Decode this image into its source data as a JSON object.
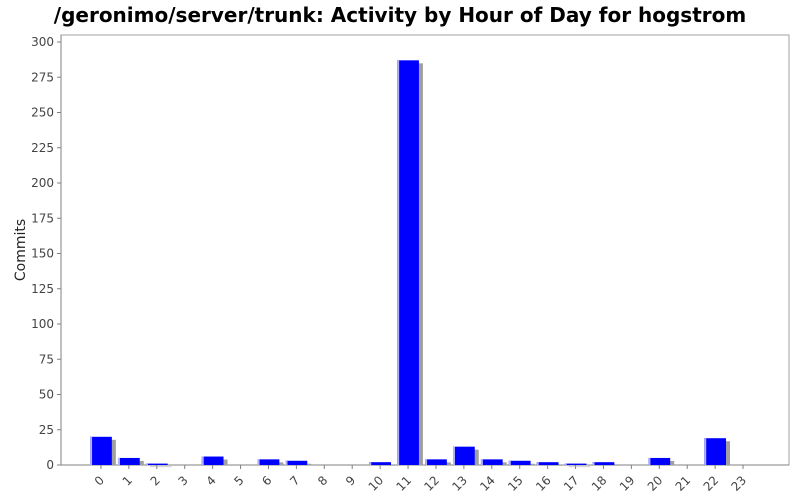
{
  "chart_data": {
    "type": "bar",
    "title": "/geronimo/server/trunk: Activity by Hour of Day for hogstrom",
    "xlabel": "",
    "ylabel": "Commits",
    "ylim": [
      0,
      300
    ],
    "yticks": [
      0,
      25,
      50,
      75,
      100,
      125,
      150,
      175,
      200,
      225,
      250,
      275,
      300
    ],
    "categories": [
      "0",
      "1",
      "2",
      "3",
      "4",
      "5",
      "6",
      "7",
      "8",
      "9",
      "10",
      "11",
      "12",
      "13",
      "14",
      "15",
      "16",
      "17",
      "18",
      "19",
      "20",
      "21",
      "22",
      "23"
    ],
    "values": [
      20,
      5,
      1,
      0,
      6,
      0,
      4,
      3,
      0,
      0,
      2,
      287,
      4,
      13,
      4,
      3,
      2,
      1,
      2,
      0,
      5,
      0,
      19,
      0
    ],
    "grid": false,
    "colors": {
      "bar": "#0000ff",
      "bar_highlight": "#b0b0ff",
      "shadow": "#a0a0a0",
      "axis": "#808080",
      "plot_border": "#a0a0a0"
    }
  }
}
